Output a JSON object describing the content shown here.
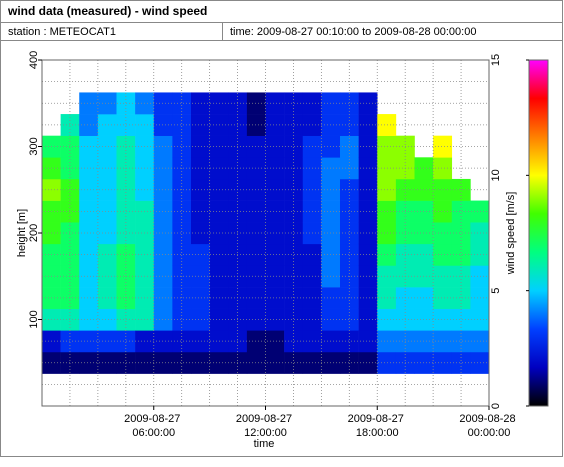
{
  "chart_data": {
    "type": "heatmap",
    "title": "wind data (measured) - wind speed",
    "station": "station : METEOCAT1",
    "period": "time: 2009-08-27 00:10:00 to 2009-08-28 00:00:00",
    "x_label": "time",
    "y_label": "height [m]",
    "colorbar_label": "wind speed [m/s]",
    "x": [
      0,
      1,
      2,
      3,
      4,
      5,
      6,
      7,
      8,
      9,
      10,
      11,
      12,
      13,
      14,
      15,
      16,
      17,
      18,
      19,
      20,
      21,
      22,
      23
    ],
    "y": [
      50,
      75,
      100,
      125,
      150,
      175,
      200,
      225,
      250,
      275,
      300,
      325,
      350
    ],
    "z": [
      [
        1,
        2,
        6,
        7,
        7,
        7,
        8,
        8,
        9,
        8,
        7,
        null,
        null
      ],
      [
        1,
        3,
        6,
        7,
        7,
        7,
        7,
        8,
        8,
        7,
        7,
        6,
        null
      ],
      [
        1,
        3,
        5,
        5,
        5,
        5,
        5,
        5,
        5,
        5,
        5,
        4,
        4
      ],
      [
        1,
        3,
        5,
        6,
        6,
        6,
        5,
        5,
        5,
        5,
        5,
        5,
        4
      ],
      [
        1,
        3,
        6,
        7,
        7,
        7,
        6,
        6,
        6,
        6,
        6,
        5,
        5
      ],
      [
        1,
        2,
        6,
        6,
        6,
        6,
        6,
        6,
        5,
        5,
        5,
        5,
        4
      ],
      [
        1,
        2,
        4,
        4,
        4,
        4,
        4,
        4,
        4,
        4,
        4,
        3,
        3
      ],
      [
        1,
        2,
        3,
        3,
        3,
        3,
        3,
        3,
        3,
        3,
        3,
        3,
        3
      ],
      [
        1,
        2,
        3,
        3,
        3,
        3,
        2,
        2,
        2,
        2,
        2,
        2,
        2
      ],
      [
        1,
        2,
        2,
        2,
        2,
        2,
        2,
        2,
        2,
        2,
        2,
        2,
        2
      ],
      [
        1,
        2,
        2,
        2,
        2,
        2,
        2,
        2,
        2,
        2,
        2,
        2,
        2
      ],
      [
        1,
        1,
        2,
        2,
        2,
        2,
        2,
        2,
        2,
        2,
        2,
        1,
        1
      ],
      [
        1,
        1,
        2,
        2,
        2,
        2,
        2,
        2,
        2,
        2,
        2,
        2,
        2
      ],
      [
        1,
        2,
        2,
        2,
        2,
        2,
        2,
        2,
        2,
        2,
        2,
        2,
        2
      ],
      [
        1,
        2,
        2,
        2,
        2,
        2,
        3,
        3,
        3,
        3,
        3,
        2,
        2
      ],
      [
        1,
        2,
        3,
        3,
        4,
        4,
        4,
        4,
        4,
        4,
        3,
        3,
        3
      ],
      [
        1,
        2,
        3,
        3,
        3,
        3,
        3,
        3,
        3,
        4,
        4,
        3,
        3
      ],
      [
        1,
        2,
        2,
        2,
        2,
        2,
        2,
        2,
        2,
        2,
        2,
        2,
        2
      ],
      [
        3,
        4,
        5,
        6,
        6,
        7,
        8,
        8,
        9,
        9,
        9,
        10,
        null
      ],
      [
        3,
        4,
        5,
        5,
        6,
        6,
        7,
        7,
        8,
        9,
        9,
        null,
        null
      ],
      [
        3,
        4,
        5,
        5,
        6,
        6,
        7,
        7,
        8,
        8,
        null,
        null,
        null
      ],
      [
        3,
        4,
        5,
        6,
        6,
        7,
        7,
        8,
        8,
        9,
        10,
        null,
        null
      ],
      [
        3,
        4,
        5,
        6,
        6,
        7,
        7,
        7,
        8,
        null,
        null,
        null,
        null
      ],
      [
        3,
        4,
        5,
        5,
        5,
        6,
        6,
        7,
        null,
        null,
        null,
        null,
        null
      ]
    ],
    "xlim": [
      0,
      24
    ],
    "xticks": [
      {
        "value": 6,
        "label": "2009-08-27 06:00:00"
      },
      {
        "value": 12,
        "label": "2009-08-27 12:00:00"
      },
      {
        "value": 18,
        "label": "2009-08-27 18:00:00"
      },
      {
        "value": 24,
        "label": "2009-08-28 00:00:00"
      }
    ],
    "ylim": [
      0,
      400
    ],
    "yticks": [
      100,
      200,
      300,
      400
    ],
    "zlim": [
      0,
      15
    ],
    "zticks": [
      0,
      5,
      10,
      15
    ],
    "colormap": [
      "#000000",
      "#0000c0",
      "#0040ff",
      "#00d0ff",
      "#00ff80",
      "#40ff00",
      "#ffff00",
      "#ff8000",
      "#ff0000",
      "#ff00ff"
    ],
    "grid": true
  }
}
